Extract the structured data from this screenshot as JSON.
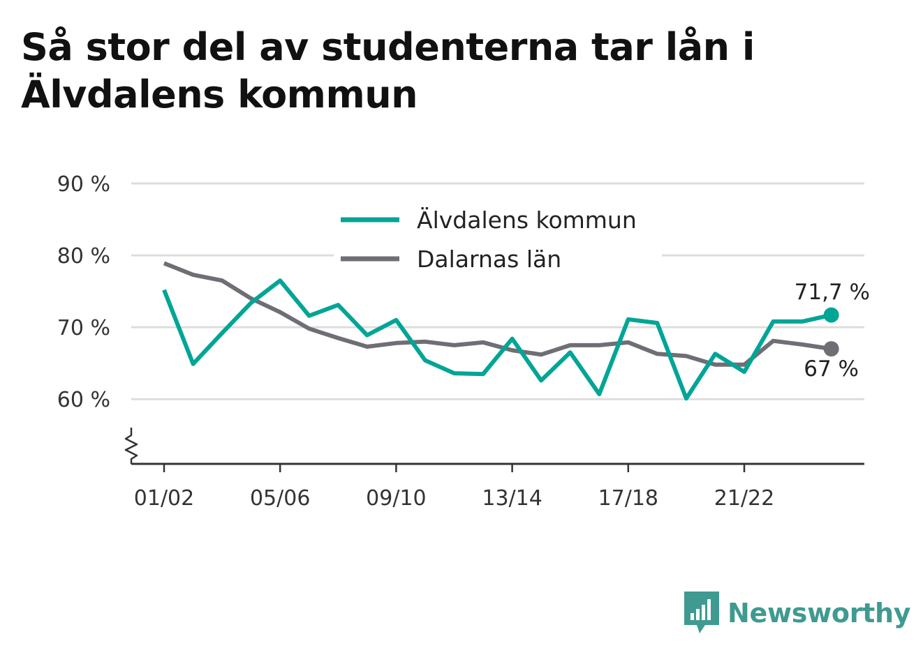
{
  "title": "Så stor del av studenterna tar lån i Älvdalens kommun",
  "brand": {
    "name": "Newsworthy",
    "icon": "bar-chart-logo-icon",
    "color": "#3f9a91"
  },
  "chart_data": {
    "type": "line",
    "title": "Så stor del av studenterna tar lån i Älvdalens kommun",
    "xlabel": "",
    "ylabel": "",
    "ylim": [
      51,
      90
    ],
    "yticks": [
      60,
      70,
      80,
      90
    ],
    "ytick_labels": [
      "60 %",
      "70 %",
      "80 %",
      "90 %"
    ],
    "y_axis_break": true,
    "grid": true,
    "legend_position": "top-center",
    "x": [
      "01/02",
      "02/03",
      "03/04",
      "04/05",
      "05/06",
      "06/07",
      "07/08",
      "08/09",
      "09/10",
      "10/11",
      "11/12",
      "12/13",
      "13/14",
      "14/15",
      "15/16",
      "16/17",
      "17/18",
      "18/19",
      "19/20",
      "20/21",
      "21/22",
      "22/23",
      "23/24",
      "24/25"
    ],
    "xtick_labels": [
      "01/02",
      "05/06",
      "09/10",
      "13/14",
      "17/18",
      "21/22"
    ],
    "series": [
      {
        "name": "Älvdalens kommun",
        "color": "#00a596",
        "values": [
          75.2,
          64.9,
          69.2,
          73.4,
          76.5,
          71.6,
          73.1,
          68.9,
          71.0,
          65.4,
          63.6,
          63.5,
          68.4,
          62.6,
          66.5,
          60.7,
          71.1,
          70.6,
          60.1,
          66.3,
          63.8,
          70.8,
          70.8,
          71.7
        ],
        "end_label": "71,7 %"
      },
      {
        "name": "Dalarnas län",
        "color": "#6f6e74",
        "values": [
          78.9,
          77.3,
          76.5,
          74.0,
          72.1,
          69.8,
          68.5,
          67.3,
          67.8,
          68.0,
          67.5,
          67.9,
          66.8,
          66.2,
          67.5,
          67.5,
          67.9,
          66.3,
          66.0,
          64.8,
          64.8,
          68.1,
          67.6,
          67.0
        ],
        "end_label": "67 %"
      }
    ]
  }
}
